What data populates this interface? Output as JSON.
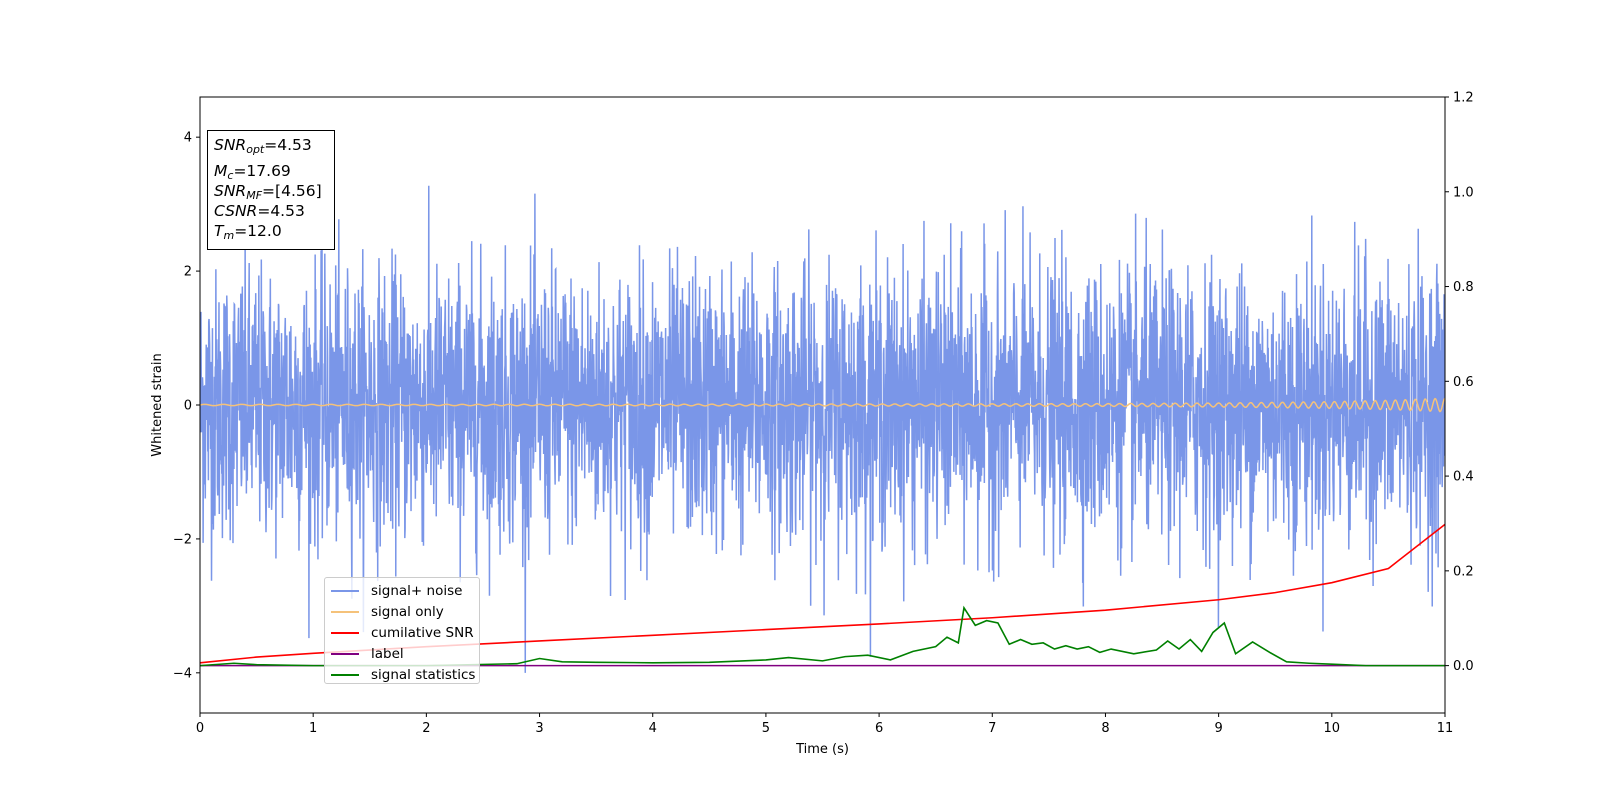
{
  "chart_data": {
    "type": "line",
    "xlabel": "Time (s)",
    "ylabel": "Whitened strain",
    "xlim": [
      0,
      11
    ],
    "ylim": [
      -4.6,
      4.6
    ],
    "y2lim": [
      -0.1,
      1.2
    ],
    "x_ticks": [
      0,
      1,
      2,
      3,
      4,
      5,
      6,
      7,
      8,
      9,
      10,
      11
    ],
    "x_tick_labels": [
      "0",
      "1",
      "2",
      "3",
      "4",
      "5",
      "6",
      "7",
      "8",
      "9",
      "10",
      "11"
    ],
    "y_ticks": [
      -4,
      -2,
      0,
      2,
      4
    ],
    "y_tick_labels": [
      "−4",
      "−2",
      "0",
      "2",
      "4"
    ],
    "y2_ticks": [
      0.0,
      0.2,
      0.4,
      0.6,
      0.8,
      1.0,
      1.2
    ],
    "y2_tick_labels": [
      "0.0",
      "0.2",
      "0.4",
      "0.6",
      "0.8",
      "1.0",
      "1.2"
    ],
    "grid": false,
    "legend_position": "lower-left",
    "annotation": [
      {
        "var": "SNR",
        "sub": "opt",
        "value": "=4.53"
      },
      {
        "var": "M",
        "sub": "c",
        "value": "=17.69"
      },
      {
        "var": "SNR",
        "sub": "MF",
        "value": "=[4.56]"
      },
      {
        "var": "CSNR",
        "sub": "",
        "value": "=4.53"
      },
      {
        "var": "T",
        "sub": "m",
        "value": "=12.0"
      }
    ],
    "series": [
      {
        "name": "signal+ noise",
        "color": "#7a96e8",
        "axis": "left",
        "description_stats": {
          "x_range": [
            0,
            11
          ],
          "y_approx_range": [
            -4.0,
            3.9
          ],
          "std": 1.0
        }
      },
      {
        "name": "signal only",
        "color": "#f5c27a",
        "axis": "left",
        "x": [
          0,
          2,
          4,
          6,
          8,
          9,
          10,
          10.5,
          11
        ],
        "amplitude": [
          0.01,
          0.01,
          0.012,
          0.015,
          0.02,
          0.03,
          0.05,
          0.07,
          0.1
        ]
      },
      {
        "name": "cumilative SNR",
        "color": "#ff0000",
        "axis": "right",
        "x": [
          0,
          0.5,
          1,
          2,
          3,
          4,
          5,
          6,
          7,
          8,
          9,
          9.5,
          10,
          10.5,
          11
        ],
        "values": [
          0.006,
          0.018,
          0.026,
          0.04,
          0.052,
          0.064,
          0.076,
          0.088,
          0.101,
          0.117,
          0.139,
          0.154,
          0.175,
          0.205,
          0.298
        ]
      },
      {
        "name": "label",
        "color": "#800080",
        "axis": "right",
        "x": [
          0,
          11
        ],
        "values": [
          0,
          0
        ]
      },
      {
        "name": "signal statistics",
        "color": "#008000",
        "axis": "right",
        "x": [
          0,
          0.3,
          0.5,
          1,
          2,
          2.8,
          3.0,
          3.2,
          3.5,
          4,
          4.5,
          5,
          5.2,
          5.5,
          5.7,
          5.9,
          6.1,
          6.3,
          6.5,
          6.6,
          6.7,
          6.75,
          6.85,
          6.95,
          7.05,
          7.15,
          7.25,
          7.35,
          7.45,
          7.55,
          7.65,
          7.75,
          7.85,
          7.95,
          8.05,
          8.25,
          8.45,
          8.55,
          8.65,
          8.75,
          8.85,
          8.95,
          9.05,
          9.15,
          9.3,
          9.45,
          9.6,
          9.8,
          10,
          10.3,
          11
        ],
        "values": [
          0.0,
          0.005,
          0.002,
          0.0,
          0.0,
          0.004,
          0.015,
          0.008,
          0.007,
          0.006,
          0.007,
          0.012,
          0.017,
          0.01,
          0.019,
          0.022,
          0.012,
          0.03,
          0.04,
          0.06,
          0.048,
          0.122,
          0.085,
          0.095,
          0.09,
          0.045,
          0.055,
          0.045,
          0.048,
          0.035,
          0.042,
          0.035,
          0.04,
          0.028,
          0.035,
          0.025,
          0.033,
          0.052,
          0.035,
          0.055,
          0.03,
          0.07,
          0.09,
          0.025,
          0.05,
          0.028,
          0.008,
          0.005,
          0.003,
          0.0,
          0.0
        ]
      }
    ]
  }
}
